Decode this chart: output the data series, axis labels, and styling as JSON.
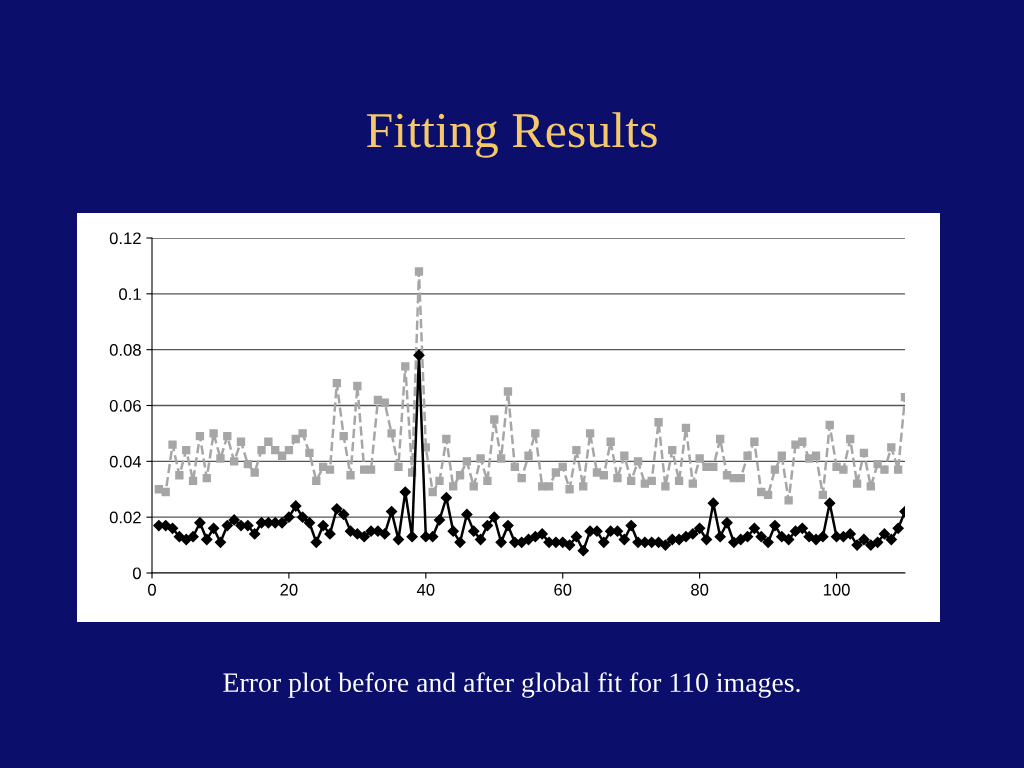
{
  "chart_data": {
    "type": "line",
    "title": "Fitting Results",
    "annotations": [
      "Error plot before and after global fit for 110 images."
    ],
    "x": [
      1,
      2,
      3,
      4,
      5,
      6,
      7,
      8,
      9,
      10,
      11,
      12,
      13,
      14,
      15,
      16,
      17,
      18,
      19,
      20,
      21,
      22,
      23,
      24,
      25,
      26,
      27,
      28,
      29,
      30,
      31,
      32,
      33,
      34,
      35,
      36,
      37,
      38,
      39,
      40,
      41,
      42,
      43,
      44,
      45,
      46,
      47,
      48,
      49,
      50,
      51,
      52,
      53,
      54,
      55,
      56,
      57,
      58,
      59,
      60,
      61,
      62,
      63,
      64,
      65,
      66,
      67,
      68,
      69,
      70,
      71,
      72,
      73,
      74,
      75,
      76,
      77,
      78,
      79,
      80,
      81,
      82,
      83,
      84,
      85,
      86,
      87,
      88,
      89,
      90,
      91,
      92,
      93,
      94,
      95,
      96,
      97,
      98,
      99,
      100,
      101,
      102,
      103,
      104,
      105,
      106,
      107,
      108,
      109,
      110
    ],
    "series": [
      {
        "color": "#a6a6a6",
        "marker": "square",
        "line_style": "dashed",
        "values": [
          0.03,
          0.029,
          0.046,
          0.035,
          0.044,
          0.033,
          0.049,
          0.034,
          0.05,
          0.041,
          0.049,
          0.04,
          0.047,
          0.039,
          0.036,
          0.044,
          0.047,
          0.044,
          0.042,
          0.044,
          0.048,
          0.05,
          0.043,
          0.033,
          0.038,
          0.037,
          0.068,
          0.049,
          0.035,
          0.067,
          0.037,
          0.037,
          0.062,
          0.061,
          0.05,
          0.038,
          0.074,
          0.036,
          0.108,
          0.045,
          0.029,
          0.033,
          0.048,
          0.031,
          0.035,
          0.04,
          0.031,
          0.041,
          0.033,
          0.055,
          0.041,
          0.065,
          0.038,
          0.034,
          0.042,
          0.05,
          0.031,
          0.031,
          0.036,
          0.038,
          0.03,
          0.044,
          0.031,
          0.05,
          0.036,
          0.035,
          0.047,
          0.034,
          0.042,
          0.033,
          0.04,
          0.032,
          0.033,
          0.054,
          0.031,
          0.044,
          0.033,
          0.052,
          0.032,
          0.041,
          0.038,
          0.038,
          0.048,
          0.035,
          0.034,
          0.034,
          0.042,
          0.047,
          0.029,
          0.028,
          0.037,
          0.042,
          0.026,
          0.046,
          0.047,
          0.041,
          0.042,
          0.028,
          0.053,
          0.038,
          0.037,
          0.048,
          0.032,
          0.043,
          0.031,
          0.039,
          0.037,
          0.045,
          0.037,
          0.063
        ]
      },
      {
        "color": "#000000",
        "marker": "diamond",
        "line_style": "solid",
        "values": [
          0.017,
          0.017,
          0.016,
          0.013,
          0.012,
          0.013,
          0.018,
          0.012,
          0.016,
          0.011,
          0.017,
          0.019,
          0.017,
          0.017,
          0.014,
          0.018,
          0.018,
          0.018,
          0.018,
          0.02,
          0.024,
          0.02,
          0.018,
          0.011,
          0.017,
          0.014,
          0.023,
          0.021,
          0.015,
          0.014,
          0.013,
          0.015,
          0.015,
          0.014,
          0.022,
          0.012,
          0.029,
          0.013,
          0.078,
          0.013,
          0.013,
          0.019,
          0.027,
          0.015,
          0.011,
          0.021,
          0.015,
          0.012,
          0.017,
          0.02,
          0.011,
          0.017,
          0.011,
          0.011,
          0.012,
          0.013,
          0.014,
          0.011,
          0.011,
          0.011,
          0.01,
          0.013,
          0.008,
          0.015,
          0.015,
          0.011,
          0.015,
          0.015,
          0.012,
          0.017,
          0.011,
          0.011,
          0.011,
          0.011,
          0.01,
          0.012,
          0.012,
          0.013,
          0.014,
          0.016,
          0.012,
          0.025,
          0.013,
          0.018,
          0.011,
          0.012,
          0.013,
          0.016,
          0.013,
          0.011,
          0.017,
          0.013,
          0.012,
          0.015,
          0.016,
          0.013,
          0.012,
          0.013,
          0.025,
          0.013,
          0.013,
          0.014,
          0.01,
          0.012,
          0.01,
          0.011,
          0.014,
          0.012,
          0.016,
          0.022
        ]
      }
    ],
    "xlim": [
      0,
      110
    ],
    "xticks": [
      0,
      20,
      40,
      60,
      80,
      100
    ],
    "ylim": [
      0,
      0.12
    ],
    "yticks": [
      0,
      0.02,
      0.04,
      0.06,
      0.08,
      0.1,
      0.12
    ],
    "grid": "y"
  }
}
